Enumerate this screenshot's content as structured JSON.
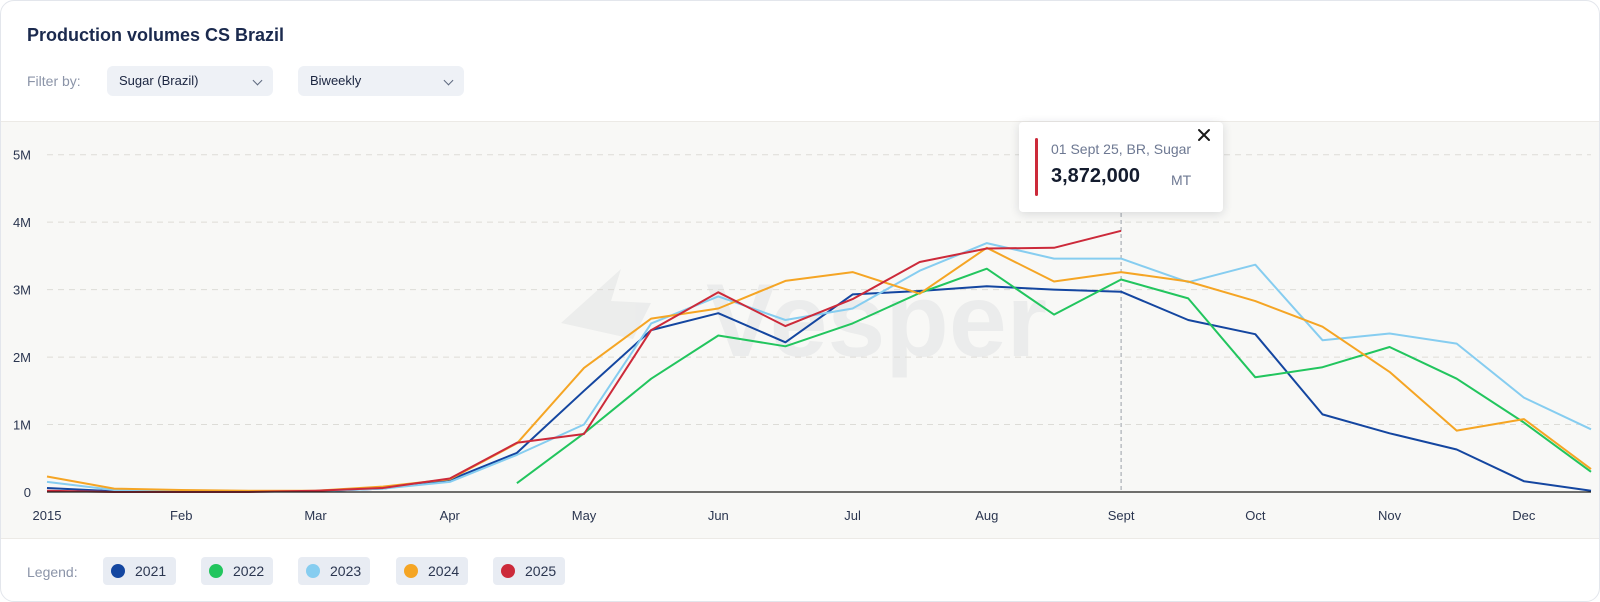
{
  "header": {
    "title": "Production volumes CS Brazil",
    "filter_label": "Filter by:",
    "commodity_select": "Sugar (Brazil)",
    "period_select": "Biweekly"
  },
  "tooltip": {
    "date": "01 Sept 25, BR, Sugar",
    "value": "3,872,000",
    "unit": "MT",
    "series_color": "#cc2a3a"
  },
  "legend": {
    "label": "Legend:",
    "items": [
      {
        "label": "2021",
        "color": "#1446a0"
      },
      {
        "label": "2022",
        "color": "#22c55e"
      },
      {
        "label": "2023",
        "color": "#86cdf0"
      },
      {
        "label": "2024",
        "color": "#f5a524"
      },
      {
        "label": "2025",
        "color": "#cc2a3a"
      }
    ]
  },
  "chart_data": {
    "type": "line",
    "title": "Production volumes CS Brazil",
    "xlabel": "",
    "ylabel": "",
    "x_ticks": [
      "2015",
      "Feb",
      "Mar",
      "Apr",
      "May",
      "Jun",
      "Jul",
      "Aug",
      "Sept",
      "Oct",
      "Nov",
      "Dec"
    ],
    "x_range": [
      0,
      11.5
    ],
    "y_ticks": [
      "0",
      "1M",
      "2M",
      "3M",
      "4M",
      "5M"
    ],
    "ylim": [
      0,
      5500000
    ],
    "grid": true,
    "legend_position": "bottom",
    "highlight_x": 8,
    "series": [
      {
        "name": "2021",
        "color": "#1446a0",
        "points": [
          [
            0,
            60000
          ],
          [
            0.5,
            10000
          ],
          [
            1,
            10000
          ],
          [
            1.5,
            10000
          ],
          [
            2,
            10000
          ],
          [
            2.5,
            50000
          ],
          [
            3,
            180000
          ],
          [
            3.5,
            580000
          ],
          [
            4,
            1500000
          ],
          [
            4.5,
            2400000
          ],
          [
            5,
            2650000
          ],
          [
            5.5,
            2220000
          ],
          [
            6,
            2930000
          ],
          [
            6.5,
            2980000
          ],
          [
            7,
            3050000
          ],
          [
            7.5,
            3000000
          ],
          [
            8,
            2970000
          ],
          [
            8.5,
            2550000
          ],
          [
            9,
            2340000
          ],
          [
            9.5,
            1150000
          ],
          [
            10,
            870000
          ],
          [
            10.5,
            630000
          ],
          [
            11,
            160000
          ],
          [
            11.5,
            20000
          ]
        ]
      },
      {
        "name": "2022",
        "color": "#22c55e",
        "points": [
          [
            3.5,
            130000
          ],
          [
            4,
            870000
          ],
          [
            4.5,
            1680000
          ],
          [
            5,
            2320000
          ],
          [
            5.5,
            2160000
          ],
          [
            6,
            2500000
          ],
          [
            6.5,
            2950000
          ],
          [
            7,
            3310000
          ],
          [
            7.5,
            2630000
          ],
          [
            8,
            3150000
          ],
          [
            8.5,
            2870000
          ],
          [
            9,
            1700000
          ],
          [
            9.5,
            1850000
          ],
          [
            10,
            2150000
          ],
          [
            10.5,
            1680000
          ],
          [
            11,
            1030000
          ],
          [
            11.5,
            300000
          ]
        ]
      },
      {
        "name": "2023",
        "color": "#86cdf0",
        "points": [
          [
            0,
            150000
          ],
          [
            0.5,
            30000
          ],
          [
            1,
            10000
          ],
          [
            1.5,
            10000
          ],
          [
            2,
            10000
          ],
          [
            2.5,
            50000
          ],
          [
            3,
            150000
          ],
          [
            3.5,
            550000
          ],
          [
            4,
            1000000
          ],
          [
            4.5,
            2500000
          ],
          [
            5,
            2900000
          ],
          [
            5.5,
            2550000
          ],
          [
            6,
            2720000
          ],
          [
            6.5,
            3280000
          ],
          [
            7,
            3690000
          ],
          [
            7.5,
            3460000
          ],
          [
            8,
            3460000
          ],
          [
            8.5,
            3110000
          ],
          [
            9,
            3370000
          ],
          [
            9.5,
            2250000
          ],
          [
            10,
            2350000
          ],
          [
            10.5,
            2200000
          ],
          [
            11,
            1400000
          ],
          [
            11.5,
            930000
          ]
        ]
      },
      {
        "name": "2024",
        "color": "#f5a524",
        "points": [
          [
            0,
            230000
          ],
          [
            0.5,
            50000
          ],
          [
            1,
            30000
          ],
          [
            1.5,
            20000
          ],
          [
            2,
            20000
          ],
          [
            2.5,
            80000
          ],
          [
            3,
            190000
          ],
          [
            3.5,
            720000
          ],
          [
            4,
            1840000
          ],
          [
            4.5,
            2570000
          ],
          [
            5,
            2720000
          ],
          [
            5.5,
            3130000
          ],
          [
            6,
            3260000
          ],
          [
            6.5,
            2940000
          ],
          [
            7,
            3620000
          ],
          [
            7.5,
            3120000
          ],
          [
            8,
            3260000
          ],
          [
            8.5,
            3120000
          ],
          [
            9,
            2830000
          ],
          [
            9.5,
            2450000
          ],
          [
            10,
            1780000
          ],
          [
            10.5,
            910000
          ],
          [
            11,
            1080000
          ],
          [
            11.5,
            340000
          ]
        ]
      },
      {
        "name": "2025",
        "color": "#cc2a3a",
        "points": [
          [
            0,
            20000
          ],
          [
            0.5,
            0
          ],
          [
            1,
            0
          ],
          [
            1.5,
            0
          ],
          [
            2,
            20000
          ],
          [
            2.5,
            60000
          ],
          [
            3,
            200000
          ],
          [
            3.5,
            730000
          ],
          [
            4,
            860000
          ],
          [
            4.5,
            2400000
          ],
          [
            5,
            2960000
          ],
          [
            5.5,
            2460000
          ],
          [
            6,
            2860000
          ],
          [
            6.5,
            3410000
          ],
          [
            7,
            3610000
          ],
          [
            7.5,
            3620000
          ],
          [
            8,
            3872000
          ]
        ]
      }
    ]
  }
}
